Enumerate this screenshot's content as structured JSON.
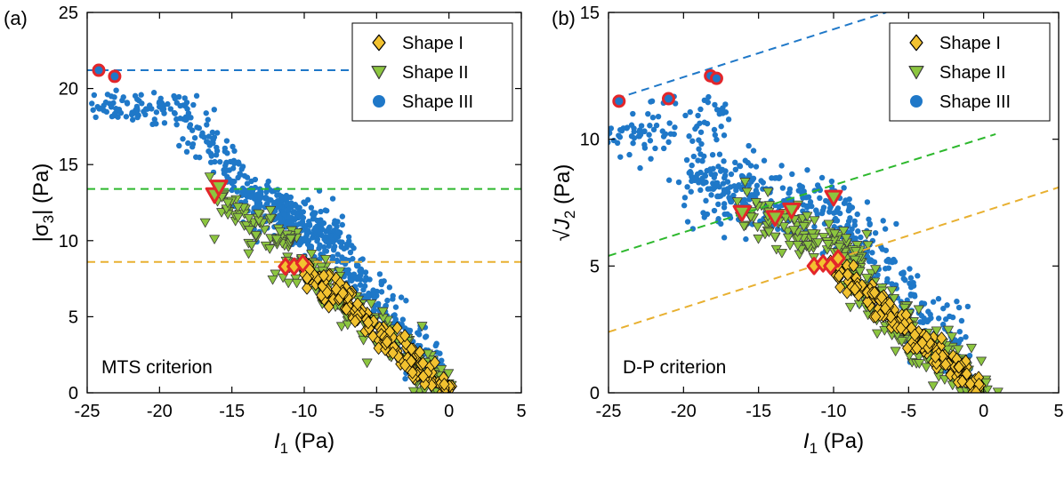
{
  "chart_data": [
    {
      "type": "scatter",
      "panel_label": "(a)",
      "xlabel": "I",
      "xlabel_sub": "1",
      "xlabel_unit": " (Pa)",
      "ylabel": "|σ",
      "ylabel_sub": "3",
      "ylabel_unit": "| (Pa)",
      "xlim": [
        -25,
        5
      ],
      "ylim": [
        0,
        25
      ],
      "xticks": [
        -25,
        -20,
        -15,
        -10,
        -5,
        0,
        5
      ],
      "yticks": [
        0,
        5,
        10,
        15,
        20,
        25
      ],
      "annotation": "MTS criterion",
      "legend": {
        "position": "top-right",
        "entries": [
          "Shape I",
          "Shape II",
          "Shape III"
        ]
      },
      "series": [
        {
          "name": "Shape I",
          "marker": "diamond",
          "color": "#f2c230",
          "edge": "#000000",
          "cloud": [
            {
              "x_from": -10,
              "y_from": 8.2,
              "x_to": 0,
              "y_to": 0,
              "spread": 0.55,
              "count": 170
            }
          ]
        },
        {
          "name": "Shape II",
          "marker": "triangle-down",
          "color": "#8cc63f",
          "edge": "#3d3d3d",
          "cloud": [
            {
              "x_from": -16,
              "y_from": 13,
              "x_to": 0,
              "y_to": 0,
              "spread": 0.9,
              "count": 260
            }
          ]
        },
        {
          "name": "Shape III",
          "marker": "circle",
          "color": "#1f78c8",
          "edge": "#1f78c8",
          "cloud": [
            {
              "x_from": -25,
              "y_from": 19,
              "x_to": -18,
              "y_to": 18.5,
              "spread": 0.7,
              "count": 90
            },
            {
              "x_from": -18,
              "y_from": 18,
              "x_to": -14,
              "y_to": 13.5,
              "spread": 0.9,
              "count": 90
            },
            {
              "x_from": -14,
              "y_from": 13,
              "x_to": -8,
              "y_to": 10,
              "spread": 1.0,
              "count": 320
            },
            {
              "x_from": -8,
              "y_from": 9.5,
              "x_to": -1,
              "y_to": 1.5,
              "spread": 1.0,
              "count": 200
            }
          ]
        }
      ],
      "highlight_points": [
        {
          "x": -24.2,
          "y": 21.2,
          "marker": "circle"
        },
        {
          "x": -23.1,
          "y": 20.8,
          "marker": "circle"
        },
        {
          "x": -16.2,
          "y": 13.0,
          "marker": "triangle-down"
        },
        {
          "x": -15.9,
          "y": 13.5,
          "marker": "triangle-down"
        },
        {
          "x": -11.3,
          "y": 8.3,
          "marker": "diamond"
        },
        {
          "x": -10.7,
          "y": 8.3,
          "marker": "diamond"
        },
        {
          "x": -10.1,
          "y": 8.5,
          "marker": "diamond"
        }
      ],
      "threshold_lines": [
        {
          "color": "#1f78c8",
          "x1": -25,
          "y1": 21.2,
          "x2": -5,
          "y2": 21.2
        },
        {
          "color": "#2db82d",
          "x1": -25,
          "y1": 13.4,
          "x2": 5,
          "y2": 13.4
        },
        {
          "color": "#e8b030",
          "x1": -25,
          "y1": 8.6,
          "x2": 5,
          "y2": 8.6
        }
      ]
    },
    {
      "type": "scatter",
      "panel_label": "(b)",
      "xlabel": "I",
      "xlabel_sub": "1",
      "xlabel_unit": " (Pa)",
      "ylabel": "√J",
      "ylabel_sub": "2",
      "ylabel_unit": " (Pa)",
      "xlim": [
        -25,
        5
      ],
      "ylim": [
        0,
        15
      ],
      "xticks": [
        -25,
        -20,
        -15,
        -10,
        -5,
        0,
        5
      ],
      "yticks": [
        0,
        5,
        10,
        15
      ],
      "annotation": "D-P criterion",
      "legend": {
        "position": "top-right",
        "entries": [
          "Shape I",
          "Shape II",
          "Shape III"
        ]
      },
      "series": [
        {
          "name": "Shape I",
          "marker": "diamond",
          "color": "#f2c230",
          "edge": "#000000",
          "cloud": [
            {
              "x_from": -10,
              "y_from": 5.0,
              "x_to": 0,
              "y_to": 0,
              "spread": 0.35,
              "count": 170
            }
          ]
        },
        {
          "name": "Shape II",
          "marker": "triangle-down",
          "color": "#8cc63f",
          "edge": "#3d3d3d",
          "cloud": [
            {
              "x_from": -16,
              "y_from": 7.0,
              "x_to": -8,
              "y_to": 5.5,
              "spread": 0.6,
              "count": 120
            },
            {
              "x_from": -10,
              "y_from": 5.0,
              "x_to": 0,
              "y_to": 0,
              "spread": 0.7,
              "count": 200
            }
          ]
        },
        {
          "name": "Shape III",
          "marker": "circle",
          "color": "#1f78c8",
          "edge": "#1f78c8",
          "cloud": [
            {
              "x_from": -25,
              "y_from": 10.0,
              "x_to": -17,
              "y_to": 10.8,
              "spread": 0.7,
              "count": 90
            },
            {
              "x_from": -20,
              "y_from": 8.5,
              "x_to": -8,
              "y_to": 6.8,
              "spread": 0.9,
              "count": 300
            },
            {
              "x_from": -9,
              "y_from": 6.0,
              "x_to": -1,
              "y_to": 1.5,
              "spread": 0.9,
              "count": 160
            }
          ]
        }
      ],
      "highlight_points": [
        {
          "x": -24.3,
          "y": 11.5,
          "marker": "circle"
        },
        {
          "x": -21.0,
          "y": 11.6,
          "marker": "circle"
        },
        {
          "x": -18.2,
          "y": 12.5,
          "marker": "circle"
        },
        {
          "x": -17.8,
          "y": 12.4,
          "marker": "circle"
        },
        {
          "x": -16.1,
          "y": 7.1,
          "marker": "triangle-down"
        },
        {
          "x": -13.9,
          "y": 6.9,
          "marker": "triangle-down"
        },
        {
          "x": -12.8,
          "y": 7.2,
          "marker": "triangle-down"
        },
        {
          "x": -10.0,
          "y": 7.7,
          "marker": "triangle-down"
        },
        {
          "x": -11.3,
          "y": 5.0,
          "marker": "diamond"
        },
        {
          "x": -10.7,
          "y": 5.1,
          "marker": "diamond"
        },
        {
          "x": -10.2,
          "y": 5.0,
          "marker": "diamond"
        },
        {
          "x": -9.7,
          "y": 5.3,
          "marker": "diamond"
        }
      ],
      "threshold_lines": [
        {
          "color": "#1f78c8",
          "x1": -24.5,
          "y1": 11.6,
          "x2": -6.5,
          "y2": 15.0
        },
        {
          "color": "#2db82d",
          "x1": -25,
          "y1": 5.4,
          "x2": 0.8,
          "y2": 10.2
        },
        {
          "color": "#e8b030",
          "x1": -25,
          "y1": 2.4,
          "x2": 5,
          "y2": 8.1
        }
      ]
    }
  ]
}
